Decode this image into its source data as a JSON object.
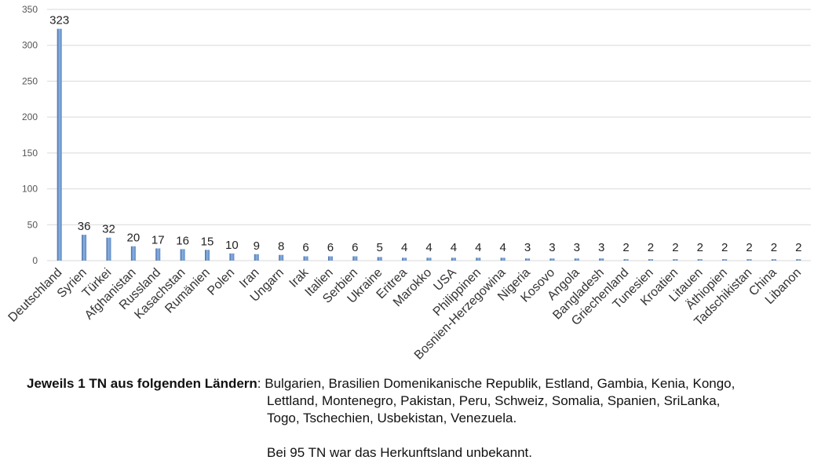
{
  "chart_data": {
    "type": "bar",
    "categories": [
      "Deutschland",
      "Syrien",
      "Türkei",
      "Afghanistan",
      "Russland",
      "Kasachstan",
      "Rumänien",
      "Polen",
      "Iran",
      "Ungarn",
      "Irak",
      "Italien",
      "Serbien",
      "Ukraine",
      "Eritrea",
      "Marokko",
      "USA",
      "Philippinen",
      "Bosnien-Herzegowina",
      "Nigeria",
      "Kosovo",
      "Angola",
      "Bangladesh",
      "Griechenland",
      "Tunesien",
      "Kroatien",
      "Litauen",
      "Äthiopien",
      "Tadschikistan",
      "China",
      "Libanon"
    ],
    "values": [
      323,
      36,
      32,
      20,
      17,
      16,
      15,
      10,
      9,
      8,
      6,
      6,
      6,
      5,
      4,
      4,
      4,
      4,
      4,
      3,
      3,
      3,
      3,
      2,
      2,
      2,
      2,
      2,
      2,
      2,
      2
    ],
    "ylim": [
      0,
      350
    ],
    "yticks": [
      0,
      50,
      100,
      150,
      200,
      250,
      300,
      350
    ],
    "grid": true,
    "legend": "none",
    "bar_color": "#5b8ac6",
    "bar_color_dark": "#3e6aa6"
  },
  "notes": {
    "lead_bold": "Jeweils 1 TN aus folgenden Ländern",
    "lead_colon": ": ",
    "first_line": "Bulgarien, Brasilien Domenikanische Republik, Estland, Gambia, Kenia, Kongo,",
    "line2": "Lettland, Montenegro, Pakistan, Peru, Schweiz, Somalia, Spanien, SriLanka,",
    "line3": "Togo, Tschechien, Usbekistan, Venezuela.",
    "unknown": "Bei 95 TN war das Herkunftsland unbekannt."
  }
}
